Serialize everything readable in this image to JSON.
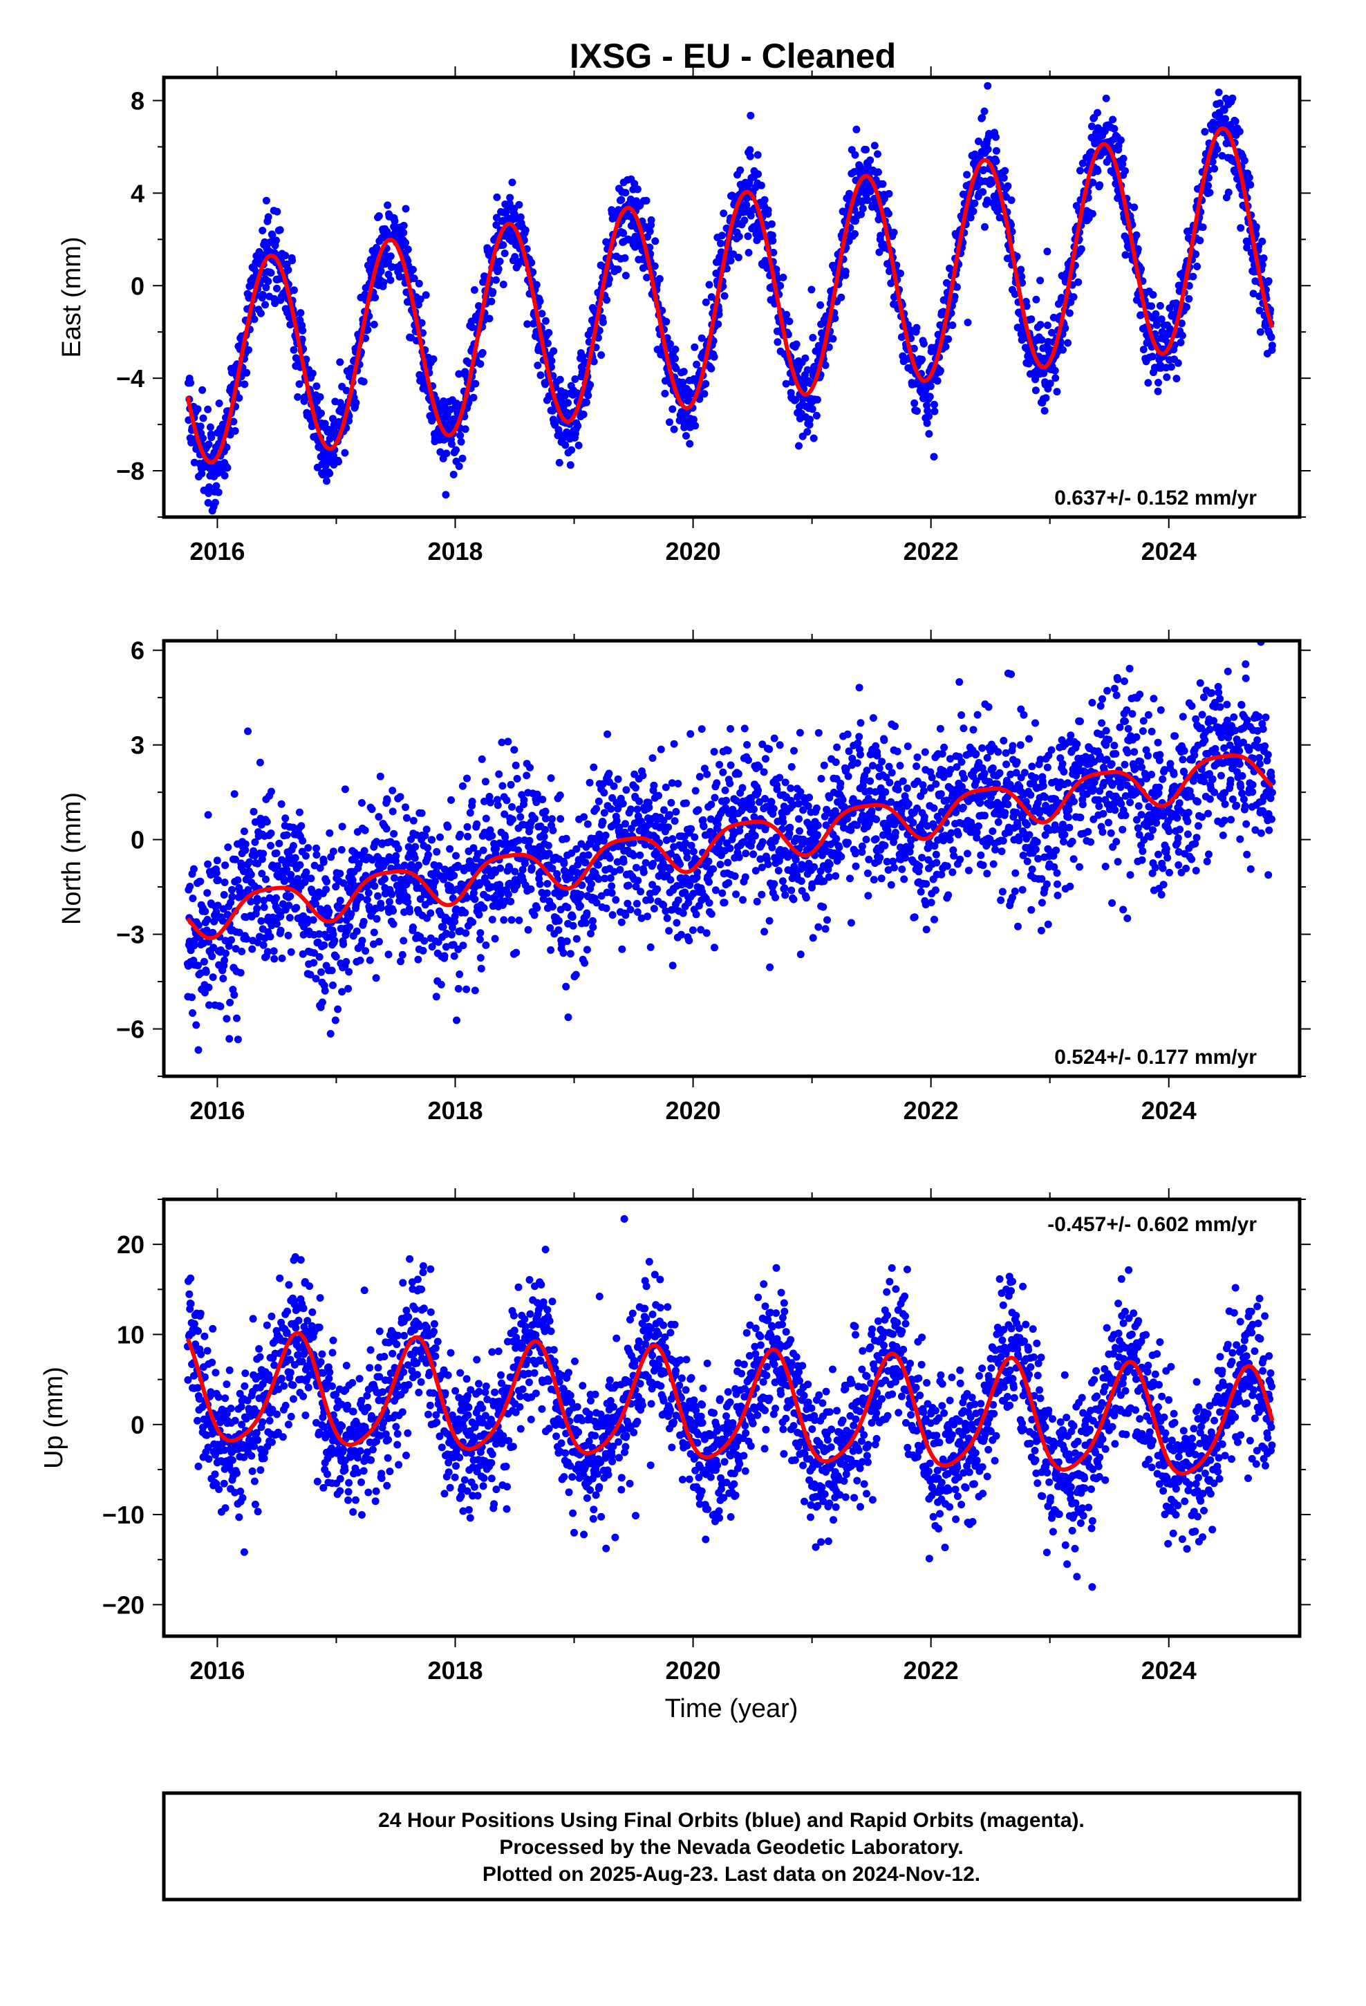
{
  "title": "IXSG  - EU - Cleaned",
  "xlabel": "Time (year)",
  "footer": {
    "line1": "24 Hour Positions Using Final Orbits (blue) and Rapid Orbits (magenta).",
    "line2": "Processed by the Nevada Geodetic Laboratory.",
    "line3": "Plotted on 2025-Aug-23. Last data on 2024-Nov-12."
  },
  "colors": {
    "data": "#0000ff",
    "model": "#ff0000",
    "frame": "#000000"
  },
  "chart_data": [
    {
      "type": "scatter",
      "ylabel": "East (mm)",
      "rate_text": "0.637+/- 0.152 mm/yr",
      "rate_position": "bottom-right",
      "xlim": [
        2015.55,
        2025.1
      ],
      "ylim": [
        -10,
        9
      ],
      "xticks": [
        2016,
        2018,
        2020,
        2022,
        2024
      ],
      "yticks": [
        -8,
        -4,
        0,
        4,
        8
      ],
      "tick_labels_x": [
        "2016",
        "2018",
        "2020",
        "2022",
        "2024"
      ],
      "tick_labels_y": [
        "−8",
        "−4",
        "0",
        "4",
        "8"
      ],
      "data_range": [
        2015.75,
        2024.87
      ],
      "model": {
        "offset": -0.76,
        "slope": 0.637,
        "annual_amplitude": 4.5,
        "phase_peak_year_fraction": 0.45,
        "annual_amplitude_change_per_year": 0.05
      },
      "scatter_sigma": 0.9,
      "series": [
        {
          "name": "Final Orbits (blue)",
          "kind": "points"
        },
        {
          "name": "model",
          "kind": "line"
        }
      ]
    },
    {
      "type": "scatter",
      "ylabel": "North (mm)",
      "rate_text": "0.524+/- 0.177 mm/yr",
      "rate_position": "bottom-right",
      "xlim": [
        2015.55,
        2025.1
      ],
      "ylim": [
        -7.5,
        6.3
      ],
      "xticks": [
        2016,
        2018,
        2020,
        2022,
        2024
      ],
      "yticks": [
        -6,
        -3,
        0,
        3,
        6
      ],
      "tick_labels_x": [
        "2016",
        "2018",
        "2020",
        "2022",
        "2024"
      ],
      "tick_labels_y": [
        "−6",
        "−3",
        "0",
        "3",
        "6"
      ],
      "data_range": [
        2015.75,
        2024.87
      ],
      "model": {
        "offset": -0.2,
        "slope": 0.524,
        "annual_amplitude": 0.65,
        "phase_peak_year_fraction": 0.45,
        "semiannual_amplitude": 0.15
      },
      "scatter_sigma": 1.3,
      "series": [
        {
          "name": "Final Orbits (blue)",
          "kind": "points"
        },
        {
          "name": "model",
          "kind": "line"
        }
      ]
    },
    {
      "type": "scatter",
      "ylabel": "Up (mm)",
      "rate_text": "-0.457+/- 0.602 mm/yr",
      "rate_position": "top-right",
      "xlim": [
        2015.55,
        2025.1
      ],
      "ylim": [
        -23.5,
        25
      ],
      "xticks": [
        2016,
        2018,
        2020,
        2022,
        2024
      ],
      "yticks": [
        -20,
        -10,
        0,
        10,
        20
      ],
      "tick_labels_x": [
        "2016",
        "2018",
        "2020",
        "2022",
        "2024"
      ],
      "tick_labels_y": [
        "−20",
        "−10",
        "0",
        "10",
        "20"
      ],
      "data_range": [
        2015.75,
        2024.87
      ],
      "model": {
        "offset": 1.7,
        "slope": -0.457,
        "annual_amplitude": 6.0,
        "phase_peak_year_fraction": 0.66,
        "semiannual_amplitude": 1.0
      },
      "scatter_sigma": 4.0,
      "series": [
        {
          "name": "Final Orbits (blue)",
          "kind": "points"
        },
        {
          "name": "model",
          "kind": "line"
        }
      ]
    }
  ]
}
